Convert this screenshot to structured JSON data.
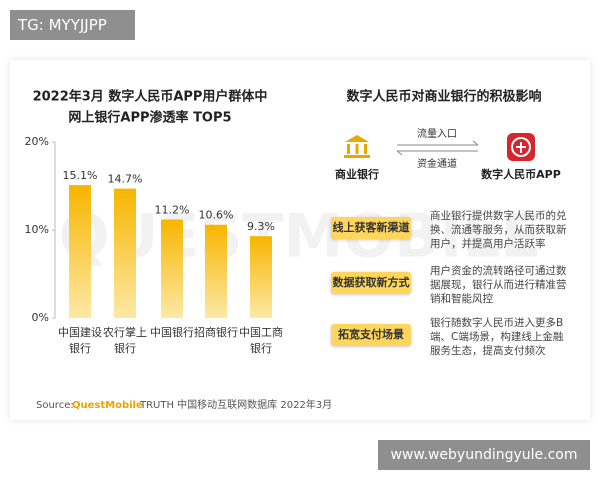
{
  "tag": "TG: MYYJJPP",
  "watermark": "QUESTMOBILE",
  "chart_data": {
    "type": "bar",
    "title": "2022年3月 数字人民币APP用户群体中",
    "subtitle": "网上银行APP渗透率 TOP5",
    "categories": [
      "中国建设银行",
      "农行掌上银行",
      "中国银行",
      "招商银行",
      "中国工商银行"
    ],
    "values": [
      15.1,
      14.7,
      11.2,
      10.6,
      9.3
    ],
    "value_labels": [
      "15.1%",
      "14.7%",
      "11.2%",
      "10.6%",
      "9.3%"
    ],
    "color": "#f7b500",
    "ylim": [
      0,
      20
    ],
    "yticks": [
      {
        "value": 0,
        "label": "0%"
      },
      {
        "value": 10,
        "label": "10%"
      },
      {
        "value": 20,
        "label": "20%"
      }
    ]
  },
  "source": {
    "prefix": "Source:",
    "brand": "QuestMobile",
    "text": "TRUTH 中国移动互联网数据库 2022年3月"
  },
  "diagram": {
    "title": "数字人民币对商业银行的积极影响",
    "left_node": "商业银行",
    "right_node": "数字人民币APP",
    "top_arrow": "流量入口",
    "bottom_arrow": "资金通道",
    "rows": [
      {
        "label": "线上获客新渠道",
        "text": "商业银行提供数字人民币的兑换、流通等服务，从而获取新用户，并提高用户活跃率"
      },
      {
        "label": "数据获取新方式",
        "text": "用户资金的流转路径可通过数据展现，银行从而进行精准营销和智能风控"
      },
      {
        "label": "拓宽支付场景",
        "text": "银行随数字人民币进入更多B端、C端场景，构建线上金融服务生态，提高支付频次"
      }
    ]
  },
  "site": "www.webyundingyule.com"
}
